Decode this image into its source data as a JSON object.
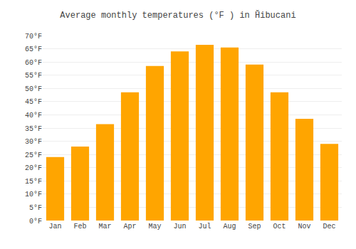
{
  "chart_data": {
    "type": "bar",
    "title": "Average monthly temperatures (°F ) in Ȟibucani",
    "categories": [
      "Jan",
      "Feb",
      "Mar",
      "Apr",
      "May",
      "Jun",
      "Jul",
      "Aug",
      "Sep",
      "Oct",
      "Nov",
      "Dec"
    ],
    "values": [
      24,
      28,
      36.5,
      48.5,
      58.5,
      64,
      66.5,
      65.5,
      59,
      48.5,
      38.5,
      29
    ],
    "color": "#FFA500",
    "ylim": [
      0,
      70
    ],
    "yticks": [
      {
        "value": 0,
        "label": "0°F"
      },
      {
        "value": 5,
        "label": "5°F"
      },
      {
        "value": 10,
        "label": "10°F"
      },
      {
        "value": 15,
        "label": "15°F"
      },
      {
        "value": 20,
        "label": "20°F"
      },
      {
        "value": 25,
        "label": "25°F"
      },
      {
        "value": 30,
        "label": "30°F"
      },
      {
        "value": 35,
        "label": "35°F"
      },
      {
        "value": 40,
        "label": "40°F"
      },
      {
        "value": 45,
        "label": "45°F"
      },
      {
        "value": 50,
        "label": "50°F"
      },
      {
        "value": 55,
        "label": "55°F"
      },
      {
        "value": 60,
        "label": "60°F"
      },
      {
        "value": 65,
        "label": "65°F"
      },
      {
        "value": 70,
        "label": "70°F"
      }
    ],
    "grid": true
  }
}
